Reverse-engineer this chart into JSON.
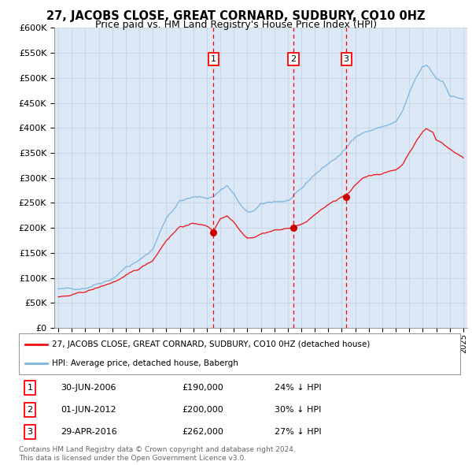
{
  "title": "27, JACOBS CLOSE, GREAT CORNARD, SUDBURY, CO10 0HZ",
  "subtitle": "Price paid vs. HM Land Registry's House Price Index (HPI)",
  "legend_line1": "27, JACOBS CLOSE, GREAT CORNARD, SUDBURY, CO10 0HZ (detached house)",
  "legend_line2": "HPI: Average price, detached house, Babergh",
  "footer1": "Contains HM Land Registry data © Crown copyright and database right 2024.",
  "footer2": "This data is licensed under the Open Government Licence v3.0.",
  "transactions": [
    {
      "num": 1,
      "date": "30-JUN-2006",
      "price": 190000,
      "pct": "24% ↓ HPI",
      "year": 2006.5
    },
    {
      "num": 2,
      "date": "01-JUN-2012",
      "price": 200000,
      "pct": "30% ↓ HPI",
      "year": 2012.417
    },
    {
      "num": 3,
      "date": "29-APR-2016",
      "price": 262000,
      "pct": "27% ↓ HPI",
      "year": 2016.333
    }
  ],
  "hpi_color": "#7ab4e0",
  "price_color": "#ee1111",
  "plot_bg_color": "#dce8f5",
  "grid_color": "#c8d8e8",
  "ylim": [
    0,
    600000
  ],
  "yticks": [
    0,
    50000,
    100000,
    150000,
    200000,
    250000,
    300000,
    350000,
    400000,
    450000,
    500000,
    550000,
    600000
  ]
}
